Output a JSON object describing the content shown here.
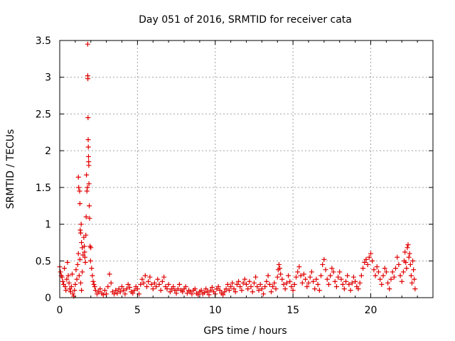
{
  "chart_data": {
    "type": "scatter",
    "title": "Day 051 of 2016, SRMTID for receiver cata",
    "xlabel": "GPS time / hours",
    "ylabel": "SRMTID / TECUs",
    "xlim": [
      0,
      24
    ],
    "ylim": [
      0,
      3.5
    ],
    "xticks": [
      0,
      5,
      10,
      15,
      20
    ],
    "xtick_labels": [
      "0",
      "5",
      "10",
      "15",
      "20"
    ],
    "yticks": [
      0,
      0.5,
      1,
      1.5,
      2,
      2.5,
      3,
      3.5
    ],
    "ytick_labels": [
      "0",
      "0.5",
      "1",
      "1.5",
      "2",
      "2.5",
      "3",
      "3.5"
    ],
    "grid": true,
    "marker": "+",
    "color": "#e00000",
    "series": [
      {
        "name": "SRMTID",
        "points": [
          [
            0.0,
            0.42
          ],
          [
            0.05,
            0.35
          ],
          [
            0.1,
            0.3
          ],
          [
            0.15,
            0.28
          ],
          [
            0.2,
            0.22
          ],
          [
            0.25,
            0.18
          ],
          [
            0.3,
            0.4
          ],
          [
            0.35,
            0.15
          ],
          [
            0.4,
            0.1
          ],
          [
            0.45,
            0.25
          ],
          [
            0.5,
            0.48
          ],
          [
            0.55,
            0.3
          ],
          [
            0.6,
            0.2
          ],
          [
            0.65,
            0.12
          ],
          [
            0.7,
            0.08
          ],
          [
            0.75,
            0.15
          ],
          [
            0.8,
            0.32
          ],
          [
            0.85,
            0.05
          ],
          [
            0.9,
            0.02
          ],
          [
            0.95,
            0.1
          ],
          [
            1.0,
            0.18
          ],
          [
            1.05,
            0.38
          ],
          [
            1.1,
            0.25
          ],
          [
            1.15,
            0.45
          ],
          [
            1.2,
            0.6
          ],
          [
            1.25,
            0.3
          ],
          [
            1.3,
            0.52
          ],
          [
            1.35,
            0.2
          ],
          [
            1.4,
            0.1
          ],
          [
            1.45,
            0.35
          ],
          [
            1.2,
            1.64
          ],
          [
            1.22,
            1.5
          ],
          [
            1.28,
            1.45
          ],
          [
            1.3,
            1.28
          ],
          [
            1.32,
            0.92
          ],
          [
            1.35,
            0.88
          ],
          [
            1.38,
            1.0
          ],
          [
            1.4,
            0.75
          ],
          [
            1.45,
            0.68
          ],
          [
            1.5,
            0.58
          ],
          [
            1.55,
            0.82
          ],
          [
            1.58,
            0.7
          ],
          [
            1.6,
            0.62
          ],
          [
            1.62,
            0.55
          ],
          [
            1.65,
            0.48
          ],
          [
            1.68,
            0.85
          ],
          [
            1.7,
            1.1
          ],
          [
            1.72,
            1.67
          ],
          [
            1.75,
            1.45
          ],
          [
            1.78,
            1.5
          ],
          [
            1.8,
            3.45
          ],
          [
            1.8,
            3.02
          ],
          [
            1.81,
            2.98
          ],
          [
            1.82,
            2.45
          ],
          [
            1.83,
            2.15
          ],
          [
            1.84,
            2.05
          ],
          [
            1.85,
            1.92
          ],
          [
            1.86,
            1.85
          ],
          [
            1.87,
            1.8
          ],
          [
            1.88,
            1.55
          ],
          [
            1.9,
            1.25
          ],
          [
            1.92,
            1.08
          ],
          [
            1.95,
            0.7
          ],
          [
            1.98,
            0.5
          ],
          [
            2.0,
            0.68
          ],
          [
            2.05,
            0.4
          ],
          [
            2.1,
            0.3
          ],
          [
            2.15,
            0.22
          ],
          [
            2.2,
            0.18
          ],
          [
            2.25,
            0.15
          ],
          [
            2.3,
            0.1
          ],
          [
            2.4,
            0.05
          ],
          [
            2.5,
            0.08
          ],
          [
            2.6,
            0.12
          ],
          [
            2.7,
            0.06
          ],
          [
            2.8,
            0.04
          ],
          [
            2.9,
            0.1
          ],
          [
            3.0,
            0.05
          ],
          [
            3.1,
            0.15
          ],
          [
            3.2,
            0.32
          ],
          [
            3.3,
            0.2
          ],
          [
            3.4,
            0.08
          ],
          [
            3.5,
            0.05
          ],
          [
            3.6,
            0.1
          ],
          [
            3.7,
            0.06
          ],
          [
            3.8,
            0.12
          ],
          [
            3.9,
            0.08
          ],
          [
            4.0,
            0.15
          ],
          [
            4.1,
            0.1
          ],
          [
            4.2,
            0.05
          ],
          [
            4.3,
            0.12
          ],
          [
            4.4,
            0.18
          ],
          [
            4.5,
            0.14
          ],
          [
            4.6,
            0.08
          ],
          [
            4.7,
            0.06
          ],
          [
            4.8,
            0.1
          ],
          [
            4.9,
            0.15
          ],
          [
            5.0,
            0.12
          ],
          [
            5.1,
            0.05
          ],
          [
            5.2,
            0.18
          ],
          [
            5.3,
            0.25
          ],
          [
            5.4,
            0.2
          ],
          [
            5.5,
            0.3
          ],
          [
            5.6,
            0.15
          ],
          [
            5.7,
            0.22
          ],
          [
            5.8,
            0.28
          ],
          [
            5.9,
            0.18
          ],
          [
            6.0,
            0.12
          ],
          [
            6.1,
            0.2
          ],
          [
            6.2,
            0.15
          ],
          [
            6.3,
            0.25
          ],
          [
            6.4,
            0.18
          ],
          [
            6.5,
            0.1
          ],
          [
            6.6,
            0.22
          ],
          [
            6.7,
            0.28
          ],
          [
            6.8,
            0.15
          ],
          [
            6.9,
            0.12
          ],
          [
            7.0,
            0.18
          ],
          [
            7.1,
            0.08
          ],
          [
            7.2,
            0.12
          ],
          [
            7.3,
            0.15
          ],
          [
            7.4,
            0.1
          ],
          [
            7.5,
            0.06
          ],
          [
            7.6,
            0.12
          ],
          [
            7.7,
            0.18
          ],
          [
            7.8,
            0.1
          ],
          [
            7.9,
            0.08
          ],
          [
            8.0,
            0.12
          ],
          [
            8.1,
            0.15
          ],
          [
            8.2,
            0.06
          ],
          [
            8.3,
            0.1
          ],
          [
            8.4,
            0.08
          ],
          [
            8.5,
            0.05
          ],
          [
            8.6,
            0.1
          ],
          [
            8.7,
            0.12
          ],
          [
            8.8,
            0.06
          ],
          [
            8.9,
            0.04
          ],
          [
            9.0,
            0.08
          ],
          [
            9.1,
            0.1
          ],
          [
            9.2,
            0.05
          ],
          [
            9.3,
            0.07
          ],
          [
            9.4,
            0.12
          ],
          [
            9.5,
            0.08
          ],
          [
            9.6,
            0.04
          ],
          [
            9.7,
            0.1
          ],
          [
            9.8,
            0.14
          ],
          [
            9.9,
            0.08
          ],
          [
            10.0,
            0.05
          ],
          [
            10.1,
            0.12
          ],
          [
            10.2,
            0.15
          ],
          [
            10.3,
            0.1
          ],
          [
            10.4,
            0.06
          ],
          [
            10.5,
            0.04
          ],
          [
            10.6,
            0.08
          ],
          [
            10.7,
            0.12
          ],
          [
            10.8,
            0.18
          ],
          [
            10.9,
            0.1
          ],
          [
            11.0,
            0.15
          ],
          [
            11.1,
            0.2
          ],
          [
            11.2,
            0.12
          ],
          [
            11.3,
            0.08
          ],
          [
            11.4,
            0.18
          ],
          [
            11.5,
            0.22
          ],
          [
            11.6,
            0.15
          ],
          [
            11.7,
            0.1
          ],
          [
            11.8,
            0.2
          ],
          [
            11.9,
            0.25
          ],
          [
            12.0,
            0.18
          ],
          [
            12.1,
            0.12
          ],
          [
            12.2,
            0.22
          ],
          [
            12.3,
            0.15
          ],
          [
            12.4,
            0.08
          ],
          [
            12.5,
            0.2
          ],
          [
            12.6,
            0.28
          ],
          [
            12.7,
            0.15
          ],
          [
            12.8,
            0.1
          ],
          [
            12.9,
            0.18
          ],
          [
            13.0,
            0.12
          ],
          [
            13.1,
            0.05
          ],
          [
            13.2,
            0.15
          ],
          [
            13.3,
            0.22
          ],
          [
            13.4,
            0.3
          ],
          [
            13.5,
            0.18
          ],
          [
            13.6,
            0.08
          ],
          [
            13.7,
            0.15
          ],
          [
            13.8,
            0.2
          ],
          [
            13.9,
            0.12
          ],
          [
            14.0,
            0.28
          ],
          [
            14.05,
            0.38
          ],
          [
            14.1,
            0.45
          ],
          [
            14.15,
            0.4
          ],
          [
            14.2,
            0.32
          ],
          [
            14.3,
            0.25
          ],
          [
            14.4,
            0.18
          ],
          [
            14.5,
            0.12
          ],
          [
            14.6,
            0.2
          ],
          [
            14.7,
            0.3
          ],
          [
            14.8,
            0.22
          ],
          [
            14.9,
            0.15
          ],
          [
            15.0,
            0.1
          ],
          [
            15.1,
            0.18
          ],
          [
            15.2,
            0.28
          ],
          [
            15.3,
            0.35
          ],
          [
            15.4,
            0.42
          ],
          [
            15.5,
            0.3
          ],
          [
            15.6,
            0.2
          ],
          [
            15.7,
            0.32
          ],
          [
            15.8,
            0.25
          ],
          [
            15.9,
            0.15
          ],
          [
            16.0,
            0.2
          ],
          [
            16.1,
            0.28
          ],
          [
            16.2,
            0.35
          ],
          [
            16.3,
            0.22
          ],
          [
            16.4,
            0.12
          ],
          [
            16.5,
            0.25
          ],
          [
            16.6,
            0.18
          ],
          [
            16.7,
            0.1
          ],
          [
            16.8,
            0.3
          ],
          [
            16.9,
            0.45
          ],
          [
            17.0,
            0.52
          ],
          [
            17.1,
            0.38
          ],
          [
            17.2,
            0.25
          ],
          [
            17.3,
            0.18
          ],
          [
            17.4,
            0.3
          ],
          [
            17.5,
            0.4
          ],
          [
            17.6,
            0.35
          ],
          [
            17.7,
            0.22
          ],
          [
            17.8,
            0.15
          ],
          [
            17.9,
            0.28
          ],
          [
            18.0,
            0.35
          ],
          [
            18.1,
            0.25
          ],
          [
            18.2,
            0.18
          ],
          [
            18.3,
            0.12
          ],
          [
            18.4,
            0.22
          ],
          [
            18.5,
            0.3
          ],
          [
            18.6,
            0.18
          ],
          [
            18.7,
            0.1
          ],
          [
            18.8,
            0.2
          ],
          [
            18.9,
            0.28
          ],
          [
            19.0,
            0.22
          ],
          [
            19.1,
            0.15
          ],
          [
            19.2,
            0.12
          ],
          [
            19.3,
            0.2
          ],
          [
            19.4,
            0.3
          ],
          [
            19.5,
            0.4
          ],
          [
            19.6,
            0.48
          ],
          [
            19.7,
            0.52
          ],
          [
            19.8,
            0.45
          ],
          [
            19.9,
            0.55
          ],
          [
            20.0,
            0.6
          ],
          [
            20.1,
            0.5
          ],
          [
            20.2,
            0.38
          ],
          [
            20.3,
            0.3
          ],
          [
            20.4,
            0.42
          ],
          [
            20.5,
            0.35
          ],
          [
            20.6,
            0.25
          ],
          [
            20.7,
            0.18
          ],
          [
            20.8,
            0.3
          ],
          [
            20.9,
            0.4
          ],
          [
            21.0,
            0.35
          ],
          [
            21.1,
            0.2
          ],
          [
            21.2,
            0.12
          ],
          [
            21.3,
            0.25
          ],
          [
            21.4,
            0.35
          ],
          [
            21.5,
            0.28
          ],
          [
            21.6,
            0.4
          ],
          [
            21.7,
            0.55
          ],
          [
            21.8,
            0.45
          ],
          [
            21.9,
            0.3
          ],
          [
            22.0,
            0.22
          ],
          [
            22.1,
            0.35
          ],
          [
            22.15,
            0.5
          ],
          [
            22.2,
            0.62
          ],
          [
            22.25,
            0.48
          ],
          [
            22.3,
            0.4
          ],
          [
            22.35,
            0.68
          ],
          [
            22.4,
            0.72
          ],
          [
            22.45,
            0.55
          ],
          [
            22.5,
            0.6
          ],
          [
            22.55,
            0.45
          ],
          [
            22.6,
            0.3
          ],
          [
            22.65,
            0.2
          ],
          [
            22.7,
            0.5
          ],
          [
            22.75,
            0.38
          ],
          [
            22.8,
            0.25
          ],
          [
            22.85,
            0.12
          ]
        ]
      }
    ]
  }
}
